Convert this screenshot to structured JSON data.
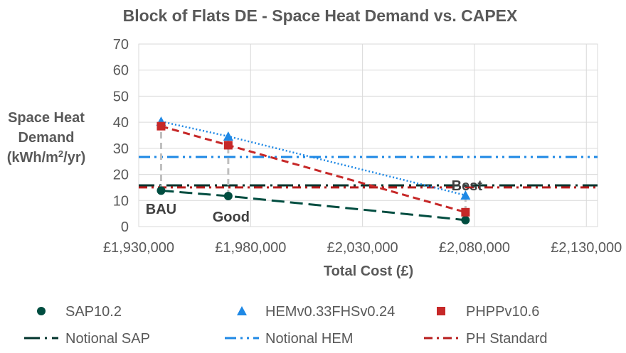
{
  "chart_data": {
    "type": "scatter",
    "title": "Block of Flats DE - Space Heat Demand vs. CAPEX",
    "xlabel": "Total Cost (£)",
    "ylabel_lines": [
      "Space Heat",
      "Demand"
    ],
    "ylabel_unit": {
      "pre": "(kWh/m",
      "sup": "2",
      "post": "/yr)"
    },
    "xlim": [
      1930000,
      2135000
    ],
    "ylim": [
      0,
      70
    ],
    "x_ticks": [
      1930000,
      1980000,
      2030000,
      2080000,
      2130000
    ],
    "x_tick_labels": [
      "£1,930,000",
      "£1,980,000",
      "£2,030,000",
      "£2,080,000",
      "£2,130,000"
    ],
    "y_ticks": [
      0,
      10,
      20,
      30,
      40,
      50,
      60,
      70
    ],
    "y_tick_labels": [
      "0",
      "10",
      "20",
      "30",
      "40",
      "50",
      "60",
      "70"
    ],
    "grid": true,
    "legend_position": "bottom",
    "series": [
      {
        "name": "SAP10.2",
        "marker": "circle",
        "color": "#004D40",
        "line": "longdash",
        "points": [
          {
            "x": 1940000,
            "y": 13.8
          },
          {
            "x": 1970000,
            "y": 11.7
          },
          {
            "x": 2076000,
            "y": 2.5
          }
        ]
      },
      {
        "name": "HEMv0.33FHSv0.24",
        "marker": "triangle",
        "color": "#1E88E5",
        "line": "dotted",
        "points": [
          {
            "x": 1940000,
            "y": 40.3
          },
          {
            "x": 1970000,
            "y": 34.6
          },
          {
            "x": 2076000,
            "y": 12.0
          }
        ]
      },
      {
        "name": "PHPPv10.6",
        "marker": "square",
        "color": "#C62828",
        "line": "dashed",
        "points": [
          {
            "x": 1940000,
            "y": 38.5
          },
          {
            "x": 1970000,
            "y": 31.2
          },
          {
            "x": 2076000,
            "y": 5.5
          }
        ]
      }
    ],
    "reference_lines": [
      {
        "name": "Notional SAP",
        "y": 15.8,
        "color": "#00332C",
        "dash": "longdashdot"
      },
      {
        "name": "Notional HEM",
        "y": 26.7,
        "color": "#1E88E5",
        "dash": "dashdotdot"
      },
      {
        "name": "PH Standard",
        "y": 15.0,
        "color": "#B71C1C",
        "dash": "dashdot"
      }
    ],
    "point_labels": [
      {
        "text": "BAU",
        "x": 1940000
      },
      {
        "text": "Good",
        "x": 1970000
      },
      {
        "text": "Best",
        "x": 2076000
      }
    ],
    "legend": [
      {
        "name": "SAP10.2",
        "symbol": "circle",
        "color": "#004D40"
      },
      {
        "name": "HEMv0.33FHSv0.24",
        "symbol": "triangle",
        "color": "#1E88E5"
      },
      {
        "name": "PHPPv10.6",
        "symbol": "square",
        "color": "#C62828"
      },
      {
        "name": "Notional SAP",
        "symbol": "longdashdot",
        "color": "#00332C"
      },
      {
        "name": "Notional HEM",
        "symbol": "dashdotdot",
        "color": "#1E88E5"
      },
      {
        "name": "PH Standard",
        "symbol": "dashdot",
        "color": "#B71C1C"
      }
    ]
  }
}
